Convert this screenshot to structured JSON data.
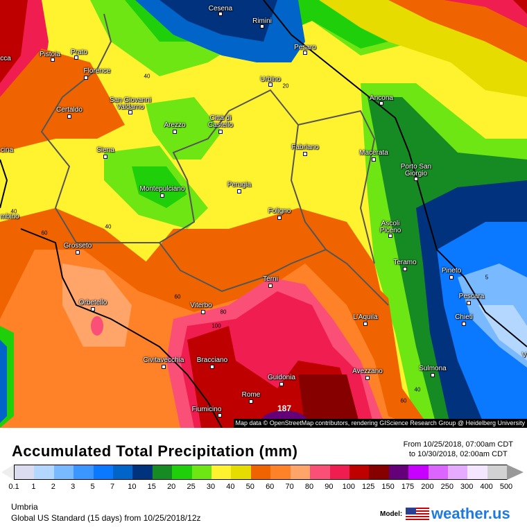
{
  "map": {
    "attribution": "Map data © OpenStreetMap contributors, rendering GIScience Research Group @ Heidelberg University",
    "cities": [
      {
        "name": "Cesena"
      },
      {
        "name": "Rimini"
      },
      {
        "name": "Pesaro"
      },
      {
        "name": "Pistoia"
      },
      {
        "name": "Prato"
      },
      {
        "name": "Florence"
      },
      {
        "name": "Urbino"
      },
      {
        "name": "Ancona"
      },
      {
        "name": "Certaldo"
      },
      {
        "name": "San Giovanni Valdarno"
      },
      {
        "name": "Arezzo"
      },
      {
        "name": "Città di Castello"
      },
      {
        "name": "Fabriano"
      },
      {
        "name": "Macerata"
      },
      {
        "name": "Siena"
      },
      {
        "name": "Porto San Giorgio"
      },
      {
        "name": "Montepulciano"
      },
      {
        "name": "Perugia"
      },
      {
        "name": "Foligno"
      },
      {
        "name": "Ascoli Piceno"
      },
      {
        "name": "Grosseto"
      },
      {
        "name": "Teramo"
      },
      {
        "name": "Pineto"
      },
      {
        "name": "Terni"
      },
      {
        "name": "Pescara"
      },
      {
        "name": "Orbetello"
      },
      {
        "name": "Viterbo"
      },
      {
        "name": "L'Aquila"
      },
      {
        "name": "Chieti"
      },
      {
        "name": "Civitavecchia"
      },
      {
        "name": "Bracciano"
      },
      {
        "name": "Guidonia"
      },
      {
        "name": "Avezzano"
      },
      {
        "name": "Sulmona"
      },
      {
        "name": "Rome"
      },
      {
        "name": "Fiumicino"
      },
      {
        "name": "cca"
      },
      {
        "name": "cina"
      },
      {
        "name": "mbino"
      },
      {
        "name": "V"
      }
    ],
    "contour_labels": [
      "40",
      "20",
      "40",
      "40",
      "60",
      "60",
      "80",
      "100",
      "5",
      "40",
      "60",
      "187"
    ]
  },
  "legend": {
    "title": "Accumulated Total Precipitation (mm)",
    "period_from": "From 10/25/2018, 07:00am CDT",
    "period_to": "to 10/30/2018, 02:00am CDT",
    "colors": [
      "#dcdcf0",
      "#b4d7ff",
      "#78b9ff",
      "#3c96ff",
      "#0a78ff",
      "#0064c8",
      "#00327d",
      "#178b23",
      "#1ecf0a",
      "#6ee614",
      "#fff22e",
      "#e6dc00",
      "#f06400",
      "#ff8228",
      "#ffa56a",
      "#fa5078",
      "#f01e50",
      "#be0000",
      "#870000",
      "#640078",
      "#c800ff",
      "#dc64ff",
      "#e6aaff",
      "#f5e6ff",
      "#d2d2d2"
    ],
    "ticks": [
      "0.1",
      "1",
      "2",
      "3",
      "5",
      "7",
      "10",
      "15",
      "20",
      "25",
      "30",
      "40",
      "50",
      "60",
      "70",
      "80",
      "90",
      "100",
      "125",
      "150",
      "175",
      "200",
      "250",
      "300",
      "400",
      "500"
    ]
  },
  "footer": {
    "region": "Umbria",
    "model_run": "Global US Standard (15 days) from 10/25/2018/12z",
    "model_label": "Model:",
    "brand": "weather.us"
  }
}
